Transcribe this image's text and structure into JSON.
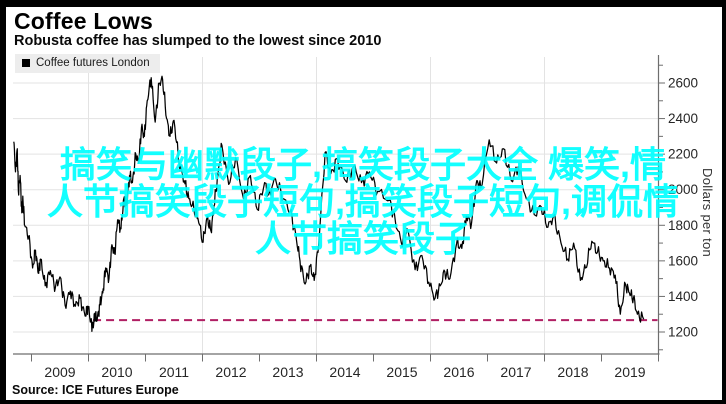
{
  "header": {
    "title": "Coffee Lows",
    "subtitle": "Robusta coffee has slumped to the lowest since 2010"
  },
  "legend": {
    "label": "Coffee futures London",
    "marker_color": "#000000",
    "background": "#ededed"
  },
  "watermark": {
    "color": "#00ffff",
    "lines": [
      "搞笑与幽默段子,搞笑段子大全 爆笑,情",
      "人节搞笑段子短句,搞笑段子短句,调侃情",
      "人节搞笑段子"
    ]
  },
  "source": {
    "label": "Source: ICE Futures Europe"
  },
  "chart_data": {
    "type": "line",
    "title": "Coffee Lows",
    "subtitle": "Robusta coffee has slumped to the lowest since 2010",
    "xlabel": "",
    "ylabel": "Dollars per ton",
    "xlim": [
      2008.68,
      2020.0
    ],
    "ylim": [
      1076,
      2746
    ],
    "grid": {
      "on": true,
      "color": "#e3e3e3",
      "vertical_years": [
        2010,
        2012,
        2014,
        2016,
        2018
      ]
    },
    "axis_color": "#6e6e6e",
    "tick_label_color": "#262626",
    "x_tick_years": [
      2009,
      2010,
      2011,
      2012,
      2013,
      2014,
      2015,
      2016,
      2017,
      2018,
      2019,
      2020
    ],
    "x_tick_labels": [
      "2009",
      "2010",
      "2011",
      "2012",
      "2013",
      "2014",
      "2015",
      "2016",
      "2017",
      "2018",
      "2019"
    ],
    "y_ticks_major": [
      1200,
      1400,
      1600,
      1800,
      2000,
      2200,
      2400,
      2600
    ],
    "y_ticks_minor": [
      1100,
      1300,
      1500,
      1700,
      1900,
      2100,
      2300,
      2500,
      2700
    ],
    "reference_line": {
      "value": 1267,
      "color": "#b01f63",
      "style": "dashed",
      "start_year": 2010.08
    },
    "series": [
      {
        "name": "Coffee futures London",
        "color": "#000000",
        "points": [
          [
            2008.69,
            2270
          ],
          [
            2008.72,
            2100
          ],
          [
            2008.75,
            2230
          ],
          [
            2008.77,
            1990
          ],
          [
            2008.8,
            2080
          ],
          [
            2008.83,
            1870
          ],
          [
            2008.85,
            1950
          ],
          [
            2008.88,
            1800
          ],
          [
            2008.95,
            1740
          ],
          [
            2009.02,
            1560
          ],
          [
            2009.07,
            1660
          ],
          [
            2009.12,
            1530
          ],
          [
            2009.16,
            1610
          ],
          [
            2009.24,
            1460
          ],
          [
            2009.33,
            1545
          ],
          [
            2009.42,
            1450
          ],
          [
            2009.5,
            1510
          ],
          [
            2009.59,
            1350
          ],
          [
            2009.68,
            1430
          ],
          [
            2009.77,
            1345
          ],
          [
            2009.85,
            1390
          ],
          [
            2009.94,
            1290
          ],
          [
            2009.99,
            1345
          ],
          [
            2010.04,
            1260
          ],
          [
            2010.08,
            1225
          ],
          [
            2010.11,
            1305
          ],
          [
            2010.15,
            1265
          ],
          [
            2010.2,
            1355
          ],
          [
            2010.25,
            1420
          ],
          [
            2010.3,
            1560
          ],
          [
            2010.36,
            1500
          ],
          [
            2010.41,
            1690
          ],
          [
            2010.46,
            1640
          ],
          [
            2010.51,
            1830
          ],
          [
            2010.57,
            1780
          ],
          [
            2010.62,
            1950
          ],
          [
            2010.67,
            1915
          ],
          [
            2010.72,
            2080
          ],
          [
            2010.77,
            2040
          ],
          [
            2010.83,
            2200
          ],
          [
            2010.88,
            2150
          ],
          [
            2010.93,
            2350
          ],
          [
            2010.98,
            2300
          ],
          [
            2011.03,
            2500
          ],
          [
            2011.1,
            2630
          ],
          [
            2011.17,
            2380
          ],
          [
            2011.24,
            2600
          ],
          [
            2011.3,
            2620
          ],
          [
            2011.37,
            2400
          ],
          [
            2011.43,
            2300
          ],
          [
            2011.5,
            2390
          ],
          [
            2011.59,
            2150
          ],
          [
            2011.68,
            2050
          ],
          [
            2011.76,
            1950
          ],
          [
            2011.85,
            1890
          ],
          [
            2011.92,
            1840
          ],
          [
            2012.01,
            1705
          ],
          [
            2012.08,
            1845
          ],
          [
            2012.15,
            1765
          ],
          [
            2012.2,
            1905
          ],
          [
            2012.27,
            2080
          ],
          [
            2012.34,
            2250
          ],
          [
            2012.46,
            2030
          ],
          [
            2012.58,
            2180
          ],
          [
            2012.72,
            1950
          ],
          [
            2012.84,
            2080
          ],
          [
            2012.96,
            1890
          ],
          [
            2013.09,
            2040
          ],
          [
            2013.16,
            1970
          ],
          [
            2013.28,
            2060
          ],
          [
            2013.42,
            1950
          ],
          [
            2013.54,
            1880
          ],
          [
            2013.64,
            1740
          ],
          [
            2013.71,
            1600
          ],
          [
            2013.8,
            1470
          ],
          [
            2013.89,
            1570
          ],
          [
            2013.96,
            1490
          ],
          [
            2014.04,
            1700
          ],
          [
            2014.15,
            2210
          ],
          [
            2014.25,
            2090
          ],
          [
            2014.37,
            2170
          ],
          [
            2014.51,
            2050
          ],
          [
            2014.65,
            2130
          ],
          [
            2014.79,
            2040
          ],
          [
            2014.93,
            2100
          ],
          [
            2015.07,
            1990
          ],
          [
            2015.28,
            1940
          ],
          [
            2015.38,
            1830
          ],
          [
            2015.49,
            1700
          ],
          [
            2015.59,
            1780
          ],
          [
            2015.73,
            1550
          ],
          [
            2015.85,
            1630
          ],
          [
            2015.97,
            1480
          ],
          [
            2016.08,
            1390
          ],
          [
            2016.17,
            1460
          ],
          [
            2016.25,
            1540
          ],
          [
            2016.34,
            1500
          ],
          [
            2016.46,
            1700
          ],
          [
            2016.55,
            1670
          ],
          [
            2016.63,
            1850
          ],
          [
            2016.72,
            1810
          ],
          [
            2016.81,
            2050
          ],
          [
            2016.88,
            2010
          ],
          [
            2017.03,
            2280
          ],
          [
            2017.16,
            2150
          ],
          [
            2017.28,
            2230
          ],
          [
            2017.42,
            2050
          ],
          [
            2017.54,
            2130
          ],
          [
            2017.68,
            1950
          ],
          [
            2017.82,
            1860
          ],
          [
            2017.94,
            1905
          ],
          [
            2018.06,
            1790
          ],
          [
            2018.16,
            1850
          ],
          [
            2018.29,
            1700
          ],
          [
            2018.41,
            1610
          ],
          [
            2018.51,
            1700
          ],
          [
            2018.63,
            1490
          ],
          [
            2018.72,
            1560
          ],
          [
            2018.83,
            1710
          ],
          [
            2018.93,
            1650
          ],
          [
            2019.03,
            1600
          ],
          [
            2019.14,
            1560
          ],
          [
            2019.24,
            1520
          ],
          [
            2019.33,
            1300
          ],
          [
            2019.42,
            1470
          ],
          [
            2019.49,
            1420
          ],
          [
            2019.56,
            1390
          ],
          [
            2019.63,
            1300
          ],
          [
            2019.74,
            1272
          ]
        ]
      }
    ],
    "legend_position": "top-left",
    "source": "Source: ICE Futures Europe"
  }
}
